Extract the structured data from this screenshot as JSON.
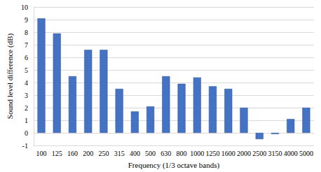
{
  "chart_data": {
    "type": "bar",
    "x_label": "Frequency (1/3 octave bands)",
    "y_label": "Sound level difference (dB)",
    "categories": [
      "100",
      "125",
      "160",
      "200",
      "250",
      "315",
      "400",
      "500",
      "630",
      "800",
      "1000",
      "1250",
      "1600",
      "2000",
      "2500",
      "3150",
      "4000",
      "5000"
    ],
    "values": [
      9.1,
      7.9,
      4.5,
      6.6,
      6.6,
      3.5,
      1.7,
      2.1,
      4.5,
      3.9,
      4.4,
      3.7,
      3.5,
      2.0,
      -0.5,
      -0.1,
      1.1,
      2.0
    ],
    "color": "#4472c4",
    "ylim": [
      -1,
      10
    ],
    "yticks": [
      -1,
      0,
      1,
      2,
      3,
      4,
      5,
      6,
      7,
      8,
      9,
      10
    ],
    "grid": true
  }
}
